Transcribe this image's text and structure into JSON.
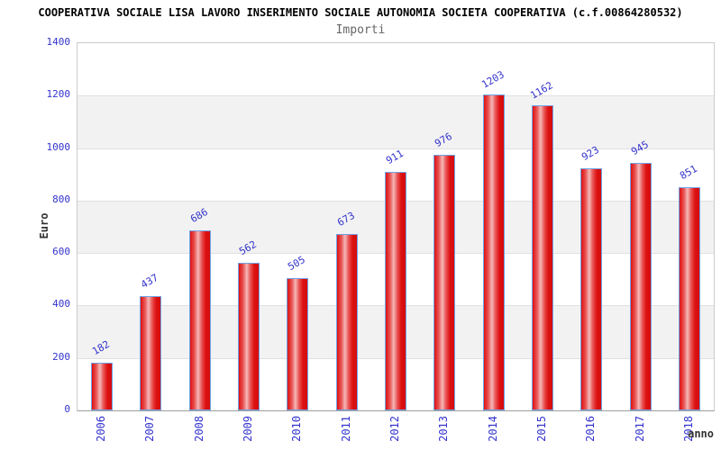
{
  "header": {
    "title": "COOPERATIVA SOCIALE LISA LAVORO INSERIMENTO SOCIALE AUTONOMIA SOCIETA COOPERATIVA (c.f.00864280532)",
    "subtitle": "Importi"
  },
  "chart_data": {
    "type": "bar",
    "title": "Importi",
    "categories": [
      "2006",
      "2007",
      "2008",
      "2009",
      "2010",
      "2011",
      "2012",
      "2013",
      "2014",
      "2015",
      "2016",
      "2017",
      "2018"
    ],
    "values": [
      182,
      437,
      686,
      562,
      505,
      673,
      911,
      976,
      1203,
      1162,
      923,
      945,
      851
    ],
    "xlabel": "anno",
    "ylabel": "Euro",
    "ylim": [
      0,
      1400
    ],
    "ytick_step": 200,
    "yticks": [
      0,
      200,
      400,
      600,
      800,
      1000,
      1200,
      1400
    ],
    "grid": "alternating horizontal bands every 200, light gridlines",
    "legend": "none",
    "value_labels": "rotated -30deg above each bar, blue",
    "category_labels": "rotated -90deg below axis, blue",
    "colors": {
      "bar_fill": "#dd1111",
      "bar_highlight": "#f5b8b8",
      "bar_border": "#6fa3e8",
      "axis_tick_text": "#3333cc",
      "band_gray": "#f2f2f2",
      "band_white": "#ffffff",
      "plot_border": "#cccccc",
      "title_text": "#000000",
      "subtitle_text": "#666666",
      "axis_label_text": "#333333"
    }
  }
}
